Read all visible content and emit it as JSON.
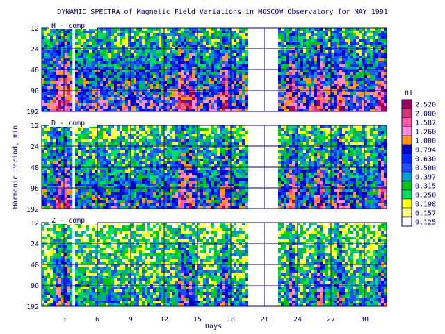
{
  "chart_data": {
    "type": "heatmap",
    "title": "DYNAMIC SPECTRA of Magnetic Field Variations in MOSCOW Observatory for MAY 1991",
    "xlabel": "Days",
    "ylabel": "Harmonic Period, min",
    "x_range": [
      1,
      32
    ],
    "x_ticks": [
      "3",
      "6",
      "9",
      "12",
      "15",
      "18",
      "21",
      "24",
      "27",
      "30"
    ],
    "y_scale": "log2",
    "y_ticks": [
      "12",
      "24",
      "48",
      "96",
      "192"
    ],
    "grid": true,
    "data_gaps_days": [
      [
        3.8,
        4.1
      ],
      [
        19.6,
        22.2
      ]
    ],
    "panels": [
      {
        "label": "H - comp",
        "intensity": 0.78
      },
      {
        "label": "D - comp",
        "intensity": 0.66
      },
      {
        "label": "Z - comp",
        "intensity": 0.46
      }
    ],
    "colorbar": {
      "unit": "nT",
      "levels": [
        "2.520",
        "2.000",
        "1.587",
        "1.260",
        "1.000",
        "0.794",
        "0.630",
        "0.500",
        "0.397",
        "0.315",
        "0.250",
        "0.198",
        "0.157",
        "0.125"
      ],
      "colors": [
        "#a0005a",
        "#d8346e",
        "#ff5aa0",
        "#ff8cd2",
        "#ff9a00",
        "#0000c8",
        "#0028ff",
        "#2050ff",
        "#00a0c8",
        "#00c800",
        "#00e060",
        "#ffff00",
        "#ffff80",
        "#ffffff"
      ]
    }
  }
}
